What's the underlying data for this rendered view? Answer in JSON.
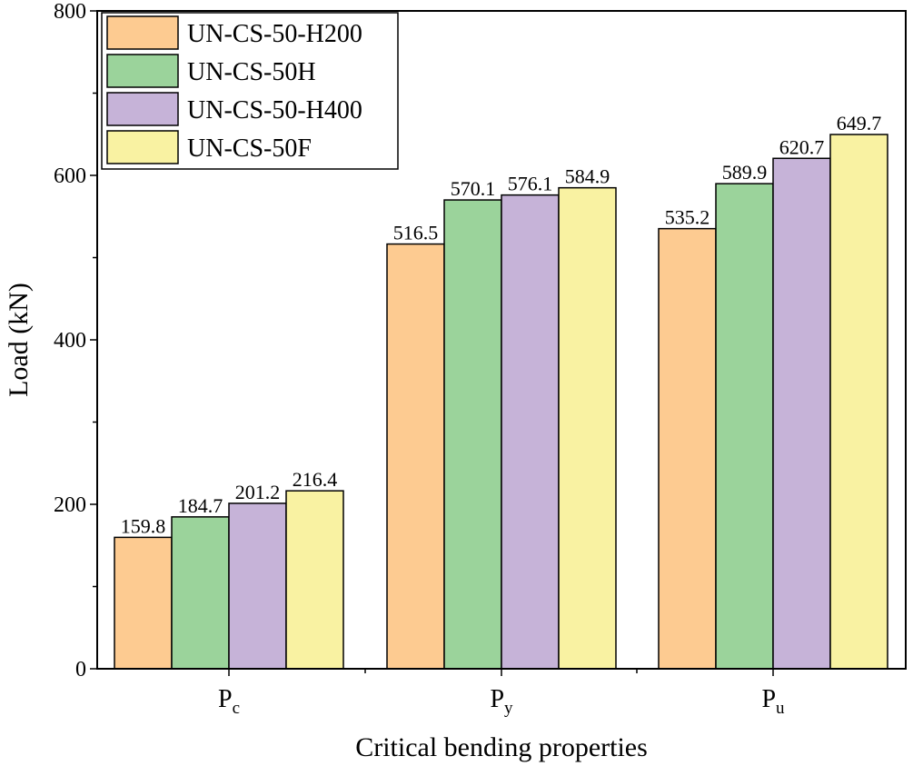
{
  "chart_data": {
    "type": "bar",
    "title": "",
    "xlabel": "Critical bending properties",
    "ylabel": "Load (kN)",
    "ylim": [
      0,
      800
    ],
    "yticks": [
      "0",
      "200",
      "400",
      "600",
      "800"
    ],
    "categories": [
      {
        "main": "P",
        "sub": "c"
      },
      {
        "main": "P",
        "sub": "y"
      },
      {
        "main": "P",
        "sub": "u"
      }
    ],
    "series": [
      {
        "name": "UN-CS-50-H200",
        "color": "#FDCB91",
        "values": [
          159.8,
          516.5,
          535.2
        ],
        "labels": [
          "159.8",
          "516.5",
          "535.2"
        ]
      },
      {
        "name": "UN-CS-50H",
        "color": "#9BD39B",
        "values": [
          184.7,
          570.1,
          589.9
        ],
        "labels": [
          "184.7",
          "570.1",
          "589.9"
        ]
      },
      {
        "name": "UN-CS-50-H400",
        "color": "#C6B3D8",
        "values": [
          201.2,
          576.1,
          620.7
        ],
        "labels": [
          "201.2",
          "576.1",
          "620.7"
        ]
      },
      {
        "name": "UN-CS-50F",
        "color": "#F9F2A2",
        "values": [
          216.4,
          584.9,
          649.7
        ],
        "labels": [
          "216.4",
          "584.9",
          "649.7"
        ]
      }
    ],
    "legend_position": "top-left",
    "grid": false
  }
}
